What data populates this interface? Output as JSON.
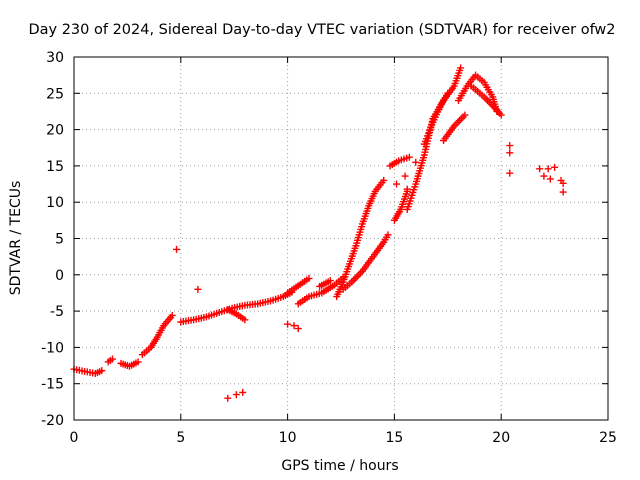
{
  "chart_data": {
    "type": "scatter",
    "title": "Day 230 of 2024, Sidereal Day-to-day VTEC variation (SDTVAR) for receiver ofw2",
    "xlabel": "GPS time / hours",
    "ylabel": "SDTVAR / TECUs",
    "xlim": [
      0,
      25
    ],
    "ylim": [
      -20,
      30
    ],
    "x_ticks": [
      0,
      5,
      10,
      15,
      20,
      25
    ],
    "y_ticks": [
      -20,
      -15,
      -10,
      -5,
      0,
      5,
      10,
      15,
      20,
      25,
      30
    ],
    "grid": true,
    "marker": "+",
    "colors": {
      "series": "#ff0000",
      "grid": "#a0a0a0",
      "axis": "#000000"
    },
    "series": [
      {
        "name": "SDTVAR",
        "tracks": [
          [
            [
              0.0,
              -13.0
            ],
            [
              0.5,
              -13.3
            ],
            [
              1.0,
              -13.6
            ],
            [
              1.3,
              -13.2
            ]
          ],
          [
            [
              1.6,
              -12.0
            ],
            [
              1.8,
              -11.6
            ]
          ],
          [
            [
              2.2,
              -12.2
            ],
            [
              2.6,
              -12.6
            ],
            [
              3.0,
              -12.0
            ]
          ],
          [
            [
              3.2,
              -11.0
            ],
            [
              3.6,
              -10.0
            ],
            [
              3.9,
              -8.6
            ],
            [
              4.2,
              -7.0
            ],
            [
              4.6,
              -5.6
            ]
          ],
          [
            [
              5.0,
              -6.5
            ],
            [
              5.6,
              -6.2
            ],
            [
              6.2,
              -5.8
            ],
            [
              6.8,
              -5.2
            ],
            [
              7.4,
              -4.6
            ],
            [
              8.0,
              -4.2
            ],
            [
              8.6,
              -4.0
            ],
            [
              9.2,
              -3.6
            ],
            [
              9.8,
              -3.0
            ],
            [
              10.2,
              -2.4
            ]
          ],
          [
            [
              7.2,
              -4.8
            ],
            [
              7.6,
              -5.4
            ],
            [
              8.0,
              -6.2
            ]
          ],
          [
            [
              10.0,
              -2.5
            ],
            [
              10.5,
              -1.5
            ],
            [
              11.0,
              -0.5
            ]
          ],
          [
            [
              10.5,
              -4.0
            ],
            [
              11.0,
              -3.0
            ],
            [
              11.6,
              -2.5
            ],
            [
              12.2,
              -1.4
            ],
            [
              12.6,
              -0.4
            ]
          ],
          [
            [
              11.5,
              -1.6
            ],
            [
              12.0,
              -0.8
            ]
          ],
          [
            [
              12.3,
              -3.0
            ],
            [
              12.6,
              -1.0
            ],
            [
              12.9,
              1.5
            ],
            [
              13.2,
              4.0
            ],
            [
              13.5,
              7.0
            ],
            [
              13.8,
              9.5
            ],
            [
              14.1,
              11.5
            ],
            [
              14.5,
              13.0
            ]
          ],
          [
            [
              12.6,
              -2.0
            ],
            [
              13.0,
              -1.0
            ],
            [
              13.5,
              0.5
            ],
            [
              14.0,
              2.5
            ],
            [
              14.5,
              4.5
            ],
            [
              14.7,
              5.5
            ]
          ],
          [
            [
              15.0,
              7.5
            ],
            [
              15.3,
              9.0
            ],
            [
              15.6,
              11.5
            ]
          ],
          [
            [
              14.8,
              15.0
            ],
            [
              15.2,
              15.7
            ],
            [
              15.7,
              16.2
            ]
          ],
          [
            [
              15.6,
              9.0
            ],
            [
              16.0,
              12.5
            ],
            [
              16.4,
              16.5
            ],
            [
              16.8,
              21.5
            ],
            [
              17.3,
              24.0
            ],
            [
              17.8,
              26.0
            ],
            [
              18.1,
              28.5
            ]
          ],
          [
            [
              16.4,
              18.0
            ],
            [
              16.8,
              21.0
            ],
            [
              17.2,
              23.5
            ],
            [
              17.5,
              25.0
            ]
          ],
          [
            [
              17.3,
              18.5
            ],
            [
              17.8,
              20.5
            ],
            [
              18.3,
              22.0
            ]
          ],
          [
            [
              18.0,
              24.0
            ],
            [
              18.4,
              26.0
            ],
            [
              18.8,
              27.5
            ],
            [
              19.2,
              26.5
            ],
            [
              19.6,
              24.5
            ],
            [
              19.8,
              22.5
            ]
          ],
          [
            [
              18.6,
              26.0
            ],
            [
              19.2,
              24.5
            ],
            [
              19.7,
              23.0
            ],
            [
              20.0,
              22.0
            ]
          ]
        ],
        "clusters": [
          [
            4.8,
            3.5
          ],
          [
            5.8,
            -2.0
          ],
          [
            7.6,
            -16.5
          ],
          [
            7.2,
            -17.0
          ],
          [
            7.9,
            -16.2
          ],
          [
            10.3,
            -7.0
          ],
          [
            10.5,
            -7.4
          ],
          [
            10.0,
            -6.8
          ],
          [
            15.1,
            12.5
          ],
          [
            15.5,
            13.6
          ],
          [
            15.6,
            11.8
          ],
          [
            16.0,
            15.5
          ],
          [
            20.4,
            17.8
          ],
          [
            20.4,
            16.8
          ],
          [
            20.4,
            14.0
          ],
          [
            21.8,
            14.6
          ],
          [
            22.2,
            14.6
          ],
          [
            22.0,
            13.6
          ],
          [
            22.3,
            13.2
          ],
          [
            22.5,
            14.8
          ],
          [
            22.8,
            13.0
          ],
          [
            22.9,
            12.6
          ],
          [
            22.9,
            11.4
          ]
        ]
      }
    ]
  }
}
